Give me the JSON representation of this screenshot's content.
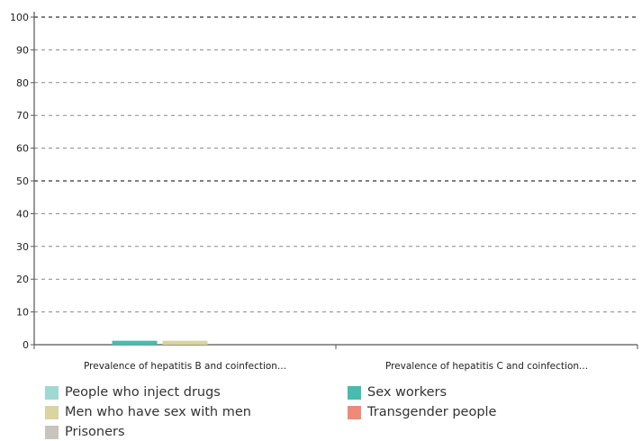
{
  "chart_data": {
    "type": "bar",
    "categories": [
      "Prevalence of hepatitis B and coinfection...",
      "Prevalence of hepatitis C and coinfection..."
    ],
    "series": [
      {
        "name": "People who inject drugs",
        "color": "#9fd8d2",
        "values": [
          null,
          null
        ]
      },
      {
        "name": "Sex workers",
        "color": "#45bcae",
        "values": [
          1.2,
          null
        ]
      },
      {
        "name": "Men who have sex with men",
        "color": "#d9d4a0",
        "values": [
          1.2,
          null
        ]
      },
      {
        "name": "Transgender people",
        "color": "#f08a78",
        "values": [
          null,
          null
        ]
      },
      {
        "name": "Prisoners",
        "color": "#c8c3bd",
        "values": [
          null,
          null
        ]
      }
    ],
    "yticks": [
      0,
      10,
      20,
      30,
      40,
      50,
      60,
      70,
      80,
      90,
      100
    ],
    "ylim": [
      0,
      100
    ],
    "grid": true,
    "legend_position": "bottom"
  }
}
